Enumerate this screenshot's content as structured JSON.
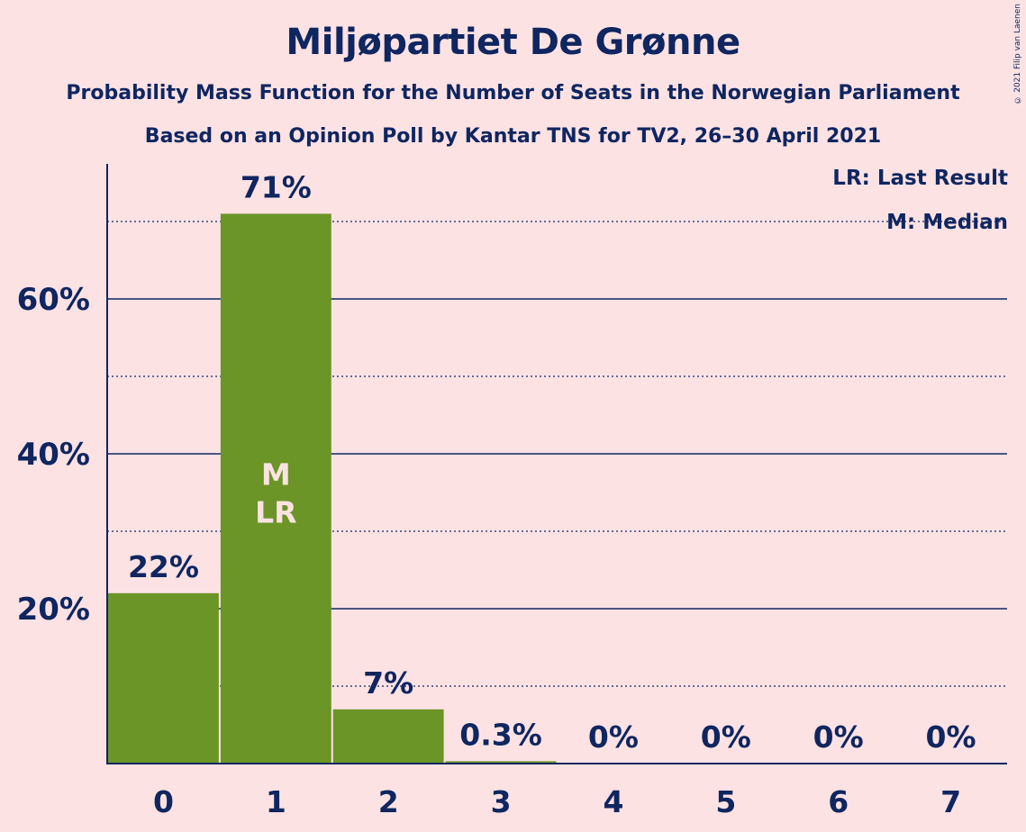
{
  "title": "Miljøpartiet De Grønne",
  "subtitle1": "Probability Mass Function for the Number of Seats in the Norwegian Parliament",
  "subtitle2": "Based on an Opinion Poll by Kantar TNS for TV2, 26–30 April 2021",
  "copyright": "© 2021 Filip van Laenen",
  "legend": {
    "last_result": "LR: Last Result",
    "median": "M: Median"
  },
  "colors": {
    "bar": "#6b9526",
    "text": "#0f2660",
    "background": "#fde2e4",
    "bar_marker_text": "#fde2e4"
  },
  "chart_data": {
    "type": "bar",
    "categories": [
      "0",
      "1",
      "2",
      "3",
      "4",
      "5",
      "6",
      "7"
    ],
    "values": [
      22,
      71,
      7,
      0.3,
      0,
      0,
      0,
      0
    ],
    "value_labels": [
      "22%",
      "71%",
      "7%",
      "0.3%",
      "0%",
      "0%",
      "0%",
      "0%"
    ],
    "ylim": [
      0,
      77
    ],
    "y_ticks": [
      20,
      40,
      60
    ],
    "y_tick_labels": [
      "20%",
      "40%",
      "60%"
    ],
    "y_minor_gridlines": [
      10,
      30,
      50,
      70
    ],
    "median_index": 1,
    "last_result_index": 1,
    "median_marker": "M",
    "last_result_marker": "LR",
    "grid": true,
    "legend_position": "top-right"
  }
}
